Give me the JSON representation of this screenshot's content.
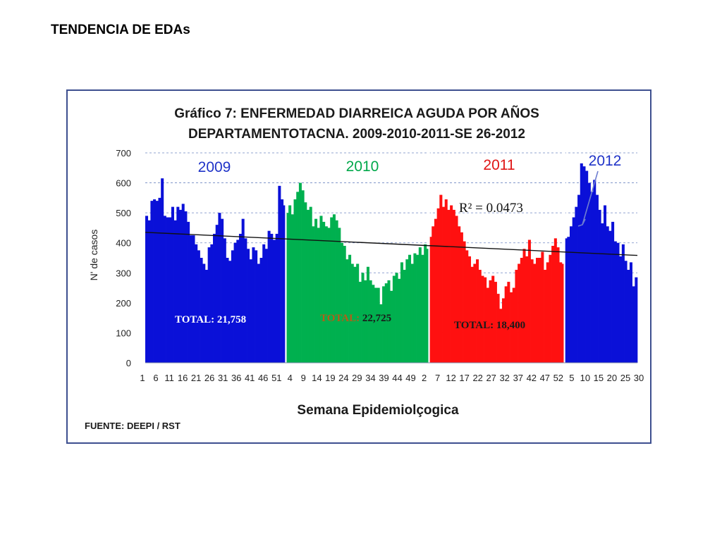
{
  "page": {
    "title": "TENDENCIA DE EDAs"
  },
  "chart_data": {
    "type": "bar",
    "title": "Gráfico 7: ENFERMEDAD DIARREICA AGUDA POR AÑOS",
    "subtitle": "DEPARTAMENTOTACNA.  2009-2010-2011-SE 26-2012",
    "xlabel": "Semana Epidemiolçogica",
    "ylabel": "N' de casos",
    "ylim": [
      0,
      700
    ],
    "yticks": [
      0,
      100,
      200,
      300,
      400,
      500,
      600,
      700
    ],
    "grid": true,
    "xtick_labels": [
      "1",
      "6",
      "11",
      "16",
      "21",
      "26",
      "31",
      "36",
      "41",
      "46",
      "51",
      "4",
      "9",
      "14",
      "19",
      "24",
      "29",
      "34",
      "39",
      "44",
      "49",
      "2",
      "7",
      "12",
      "17",
      "22",
      "27",
      "32",
      "37",
      "42",
      "47",
      "52",
      "5",
      "10",
      "15",
      "20",
      "25",
      "30"
    ],
    "series": [
      {
        "name": "2009",
        "color": "#0a10d8",
        "label_color": "#1f33c8",
        "total_label": "TOTAL:",
        "total_value": "21,758",
        "total_label_color": "#ffffff",
        "total_value_color": "#ffffff",
        "values": [
          490,
          475,
          540,
          545,
          540,
          550,
          615,
          490,
          485,
          485,
          520,
          475,
          520,
          510,
          530,
          505,
          470,
          425,
          425,
          395,
          375,
          350,
          330,
          310,
          385,
          395,
          430,
          460,
          500,
          480,
          415,
          350,
          340,
          375,
          400,
          410,
          430,
          480,
          415,
          380,
          345,
          385,
          375,
          330,
          350,
          395,
          380,
          440,
          430,
          410,
          430,
          590,
          545,
          525
        ]
      },
      {
        "name": "2010",
        "color": "#00b04f",
        "label_color": "#00a84a",
        "total_label": "TOTAL:",
        "total_value": "22,725",
        "total_label_color": "#b06018",
        "total_value_color": "#1a1a1a",
        "values": [
          500,
          525,
          495,
          545,
          570,
          600,
          575,
          535,
          510,
          520,
          455,
          480,
          450,
          490,
          470,
          455,
          450,
          485,
          495,
          475,
          450,
          400,
          390,
          345,
          360,
          330,
          320,
          330,
          270,
          300,
          275,
          320,
          275,
          260,
          250,
          250,
          195,
          255,
          265,
          275,
          240,
          290,
          300,
          280,
          335,
          310,
          345,
          360,
          330,
          365,
          360,
          385,
          360,
          395,
          380
        ]
      },
      {
        "name": "2011",
        "color": "#ff1010",
        "label_color": "#e01515",
        "total_label": "TOTAL: 18,400",
        "total_value": "",
        "total_label_color": "#1a1a1a",
        "total_value_color": "#1a1a1a",
        "values": [
          420,
          455,
          480,
          515,
          560,
          520,
          545,
          510,
          525,
          510,
          490,
          455,
          435,
          405,
          375,
          355,
          320,
          330,
          345,
          310,
          290,
          285,
          250,
          275,
          290,
          270,
          230,
          180,
          215,
          255,
          270,
          235,
          250,
          310,
          330,
          350,
          380,
          355,
          410,
          345,
          330,
          350,
          350,
          370,
          310,
          335,
          360,
          390,
          415,
          385,
          335,
          330
        ]
      },
      {
        "name": "2012",
        "color": "#0a10d8",
        "label_color": "#1f33c8",
        "values": [
          415,
          420,
          455,
          485,
          520,
          560,
          665,
          655,
          640,
          600,
          570,
          610,
          560,
          510,
          465,
          525,
          455,
          440,
          470,
          405,
          400,
          355,
          395,
          340,
          310,
          335,
          255,
          285
        ]
      }
    ],
    "trendline": {
      "start_value": 435,
      "end_value": 358
    },
    "annotations": {
      "r2": "R² = 0.0473"
    },
    "source": "FUENTE: DEEPI  / RST"
  }
}
